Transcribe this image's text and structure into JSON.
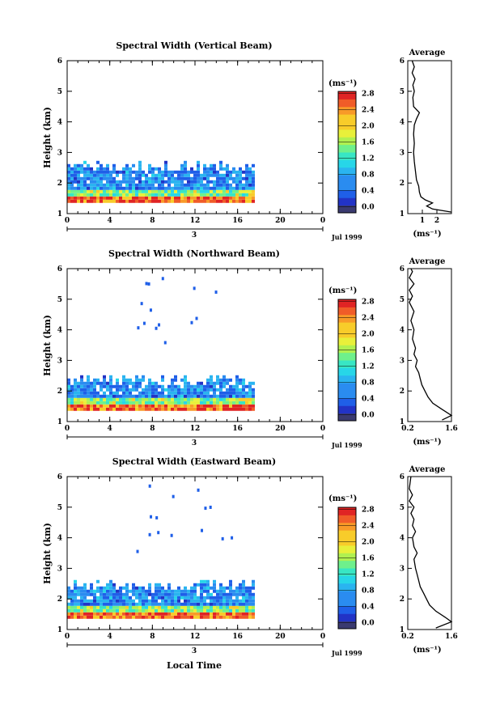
{
  "chart_data": [
    {
      "type": "heatmap",
      "title": "Spectral Width (Vertical Beam)",
      "ylabel": "Height (km)",
      "ylim": [
        1,
        6
      ],
      "xlim": [
        0,
        24
      ],
      "x_ticks": [
        "0",
        "4",
        "8",
        "12",
        "16",
        "20",
        "0"
      ],
      "y_ticks": [
        "1",
        "2",
        "3",
        "4",
        "5",
        "6"
      ],
      "date_day": "3",
      "date_label": "Jul 1999",
      "data_end_hour": 17.5,
      "colorbar": {
        "unit": "(ms⁻¹)",
        "ticks": [
          "0.0",
          "0.4",
          "0.8",
          "1.2",
          "1.6",
          "2.0",
          "2.4",
          "2.8"
        ],
        "range": [
          0,
          3.0
        ]
      },
      "profile": {
        "title": "Average",
        "xlabel": "(ms⁻¹)",
        "xlim": [
          0,
          3
        ],
        "x_ticks": [
          "1",
          "2"
        ],
        "y_ticks": [
          "1",
          "2",
          "3",
          "4",
          "5",
          "6"
        ],
        "points": [
          [
            3.0,
            1.05
          ],
          [
            1.7,
            1.15
          ],
          [
            1.3,
            1.25
          ],
          [
            1.7,
            1.35
          ],
          [
            1.2,
            1.45
          ],
          [
            0.9,
            1.55
          ],
          [
            0.8,
            1.7
          ],
          [
            0.75,
            1.9
          ],
          [
            0.6,
            2.1
          ],
          [
            0.55,
            2.3
          ],
          [
            0.5,
            2.5
          ],
          [
            0.45,
            2.7
          ],
          [
            0.4,
            3.0
          ],
          [
            0.45,
            3.3
          ],
          [
            0.4,
            3.6
          ],
          [
            0.45,
            3.9
          ],
          [
            0.6,
            4.1
          ],
          [
            0.8,
            4.3
          ],
          [
            0.4,
            4.5
          ],
          [
            0.35,
            4.8
          ],
          [
            0.45,
            5.0
          ],
          [
            0.35,
            5.2
          ],
          [
            0.5,
            5.4
          ],
          [
            0.3,
            5.6
          ],
          [
            0.45,
            5.8
          ],
          [
            0.3,
            6.0
          ]
        ]
      }
    },
    {
      "type": "heatmap",
      "title": "Spectral Width (Northward Beam)",
      "ylabel": "Height (km)",
      "ylim": [
        1,
        6
      ],
      "xlim": [
        0,
        24
      ],
      "x_ticks": [
        "0",
        "4",
        "8",
        "12",
        "16",
        "20",
        "0"
      ],
      "y_ticks": [
        "1",
        "2",
        "3",
        "4",
        "5",
        "6"
      ],
      "date_day": "3",
      "date_label": "Jul 1999",
      "data_end_hour": 17.5,
      "colorbar": {
        "unit": "(ms⁻¹)",
        "ticks": [
          "0.0",
          "0.4",
          "0.8",
          "1.2",
          "1.6",
          "2.0",
          "2.4",
          "2.8"
        ],
        "range": [
          0,
          3.0
        ]
      },
      "profile": {
        "title": "Average",
        "xlabel": "(ms⁻¹)",
        "xlim": [
          0.2,
          1.6
        ],
        "x_ticks": [
          "0.2",
          "1.6"
        ],
        "y_ticks": [
          "1",
          "2",
          "3",
          "4",
          "5",
          "6"
        ],
        "points": [
          [
            1.3,
            1.05
          ],
          [
            1.6,
            1.2
          ],
          [
            1.3,
            1.4
          ],
          [
            1.0,
            1.6
          ],
          [
            0.85,
            1.8
          ],
          [
            0.75,
            2.0
          ],
          [
            0.65,
            2.2
          ],
          [
            0.6,
            2.4
          ],
          [
            0.55,
            2.6
          ],
          [
            0.45,
            2.8
          ],
          [
            0.5,
            3.0
          ],
          [
            0.4,
            3.2
          ],
          [
            0.45,
            3.4
          ],
          [
            0.35,
            3.7
          ],
          [
            0.4,
            4.0
          ],
          [
            0.3,
            4.3
          ],
          [
            0.4,
            4.6
          ],
          [
            0.25,
            4.9
          ],
          [
            0.35,
            5.1
          ],
          [
            0.25,
            5.3
          ],
          [
            0.4,
            5.5
          ],
          [
            0.25,
            5.7
          ],
          [
            0.35,
            5.9
          ],
          [
            0.3,
            6.0
          ]
        ]
      }
    },
    {
      "type": "heatmap",
      "title": "Spectral Width (Eastward Beam)",
      "ylabel": "Height (km)",
      "ylim": [
        1,
        6
      ],
      "xlim": [
        0,
        24
      ],
      "x_ticks": [
        "0",
        "4",
        "8",
        "12",
        "16",
        "20",
        "0"
      ],
      "y_ticks": [
        "1",
        "2",
        "3",
        "4",
        "5",
        "6"
      ],
      "date_day": "3",
      "date_label": "Jul 1999",
      "xlabel": "Local Time",
      "data_end_hour": 17.5,
      "colorbar": {
        "unit": "(ms⁻¹)",
        "ticks": [
          "0.0",
          "0.4",
          "0.8",
          "1.2",
          "1.6",
          "2.0",
          "2.4",
          "2.8"
        ],
        "range": [
          0,
          3.0
        ]
      },
      "profile": {
        "title": "Average",
        "xlabel": "(ms⁻¹)",
        "xlim": [
          0.2,
          1.6
        ],
        "x_ticks": [
          "0.2",
          "1.6"
        ],
        "y_ticks": [
          "1",
          "2",
          "3",
          "4",
          "5",
          "6"
        ],
        "points": [
          [
            1.1,
            1.05
          ],
          [
            1.6,
            1.25
          ],
          [
            1.4,
            1.4
          ],
          [
            1.1,
            1.6
          ],
          [
            0.9,
            1.8
          ],
          [
            0.8,
            2.0
          ],
          [
            0.7,
            2.2
          ],
          [
            0.6,
            2.4
          ],
          [
            0.55,
            2.6
          ],
          [
            0.5,
            2.8
          ],
          [
            0.45,
            3.0
          ],
          [
            0.4,
            3.3
          ],
          [
            0.5,
            3.5
          ],
          [
            0.4,
            3.7
          ],
          [
            0.35,
            4.0
          ],
          [
            0.45,
            4.2
          ],
          [
            0.35,
            4.4
          ],
          [
            0.4,
            4.6
          ],
          [
            0.3,
            4.8
          ],
          [
            0.4,
            5.0
          ],
          [
            0.25,
            5.2
          ],
          [
            0.35,
            5.4
          ],
          [
            0.25,
            5.6
          ],
          [
            0.3,
            6.0
          ]
        ]
      }
    }
  ]
}
